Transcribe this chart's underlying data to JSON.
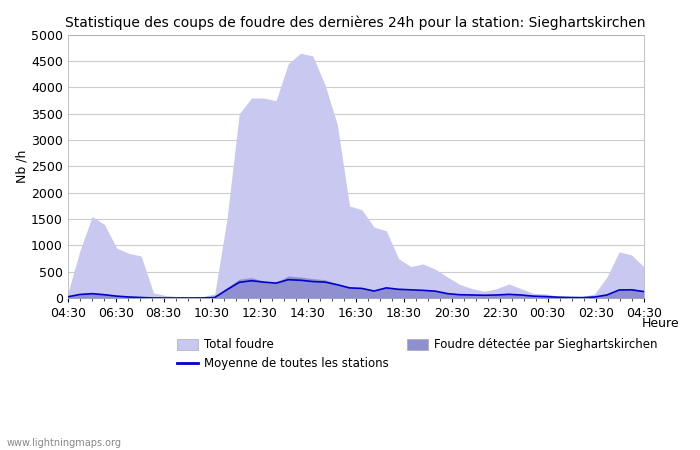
{
  "title": "Statistique des coups de foudre des dernières 24h pour la station: Sieghartskirchen",
  "xlabel": "Heure",
  "ylabel": "Nb /h",
  "xlim": [
    0,
    48
  ],
  "ylim": [
    0,
    5000
  ],
  "yticks": [
    0,
    500,
    1000,
    1500,
    2000,
    2500,
    3000,
    3500,
    4000,
    4500,
    5000
  ],
  "xtick_labels": [
    "04:30",
    "06:30",
    "08:30",
    "10:30",
    "12:30",
    "14:30",
    "16:30",
    "18:30",
    "20:30",
    "22:30",
    "00:30",
    "02:30",
    "04:30"
  ],
  "background_color": "#ffffff",
  "plot_bg_color": "#ffffff",
  "grid_color": "#cccccc",
  "watermark": "www.lightningmaps.org",
  "total_foudre_color": "#c8c8f0",
  "detected_color": "#9090d0",
  "mean_color": "#0000cc",
  "total_foudre_values": [
    80,
    900,
    1550,
    1400,
    950,
    850,
    800,
    100,
    50,
    30,
    20,
    30,
    80,
    1500,
    3500,
    3800,
    3800,
    3750,
    4450,
    4650,
    4600,
    4050,
    3300,
    1750,
    1680,
    1350,
    1280,
    750,
    600,
    650,
    550,
    400,
    260,
    180,
    130,
    180,
    270,
    180,
    90,
    80,
    40,
    30,
    30,
    80,
    400,
    880,
    820,
    600
  ],
  "detected_values": [
    30,
    80,
    100,
    80,
    50,
    30,
    15,
    5,
    3,
    3,
    3,
    5,
    15,
    200,
    360,
    390,
    320,
    300,
    420,
    400,
    370,
    350,
    270,
    200,
    190,
    140,
    200,
    175,
    165,
    155,
    140,
    90,
    70,
    65,
    60,
    65,
    80,
    65,
    40,
    35,
    20,
    15,
    12,
    25,
    70,
    180,
    185,
    140
  ],
  "mean_values": [
    25,
    70,
    85,
    65,
    38,
    22,
    12,
    4,
    3,
    3,
    3,
    4,
    12,
    160,
    300,
    330,
    305,
    285,
    350,
    340,
    315,
    305,
    255,
    195,
    185,
    135,
    195,
    168,
    158,
    148,
    133,
    85,
    65,
    60,
    55,
    60,
    72,
    60,
    38,
    30,
    18,
    13,
    10,
    22,
    60,
    155,
    158,
    125
  ]
}
